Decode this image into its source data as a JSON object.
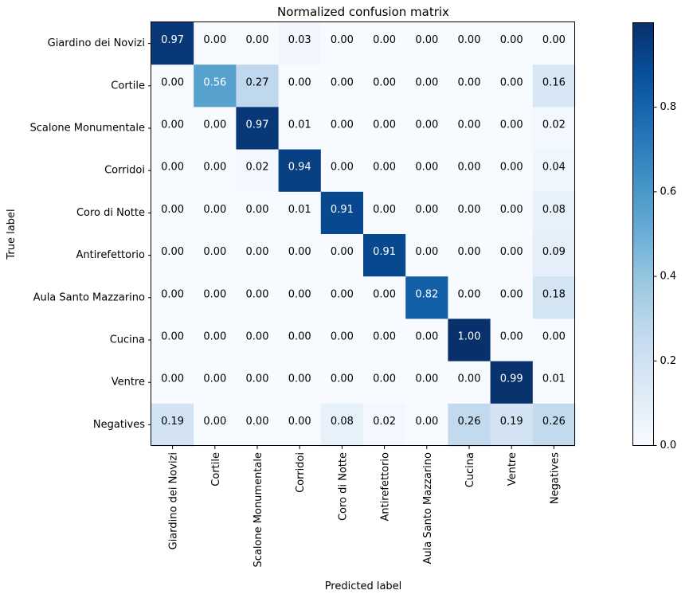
{
  "chart_data": {
    "type": "heatmap",
    "title": "Normalized confusion matrix",
    "xlabel": "Predicted label",
    "ylabel": "True label",
    "categories": [
      "Giardino dei Novizi",
      "Cortile",
      "Scalone Monumentale",
      "Corridoi",
      "Coro di Notte",
      "Antirefettorio",
      "Aula Santo Mazzarino",
      "Cucina",
      "Ventre",
      "Negatives"
    ],
    "cell_labels": [
      [
        "0.97",
        "0.00",
        "0.00",
        "0.03",
        "0.00",
        "0.00",
        "0.00",
        "0.00",
        "0.00",
        "0.00"
      ],
      [
        "0.00",
        "0.56",
        "0.27",
        "0.00",
        "0.00",
        "0.00",
        "0.00",
        "0.00",
        "0.00",
        "0.16"
      ],
      [
        "0.00",
        "0.00",
        "0.97",
        "0.01",
        "0.00",
        "0.00",
        "0.00",
        "0.00",
        "0.00",
        "0.02"
      ],
      [
        "0.00",
        "0.00",
        "0.02",
        "0.94",
        "0.00",
        "0.00",
        "0.00",
        "0.00",
        "0.00",
        "0.04"
      ],
      [
        "0.00",
        "0.00",
        "0.00",
        "0.01",
        "0.91",
        "0.00",
        "0.00",
        "0.00",
        "0.00",
        "0.08"
      ],
      [
        "0.00",
        "0.00",
        "0.00",
        "0.00",
        "0.00",
        "0.91",
        "0.00",
        "0.00",
        "0.00",
        "0.09"
      ],
      [
        "0.00",
        "0.00",
        "0.00",
        "0.00",
        "0.00",
        "0.00",
        "0.82",
        "0.00",
        "0.00",
        "0.18"
      ],
      [
        "0.00",
        "0.00",
        "0.00",
        "0.00",
        "0.00",
        "0.00",
        "0.00",
        "1.00",
        "0.00",
        "0.00"
      ],
      [
        "0.00",
        "0.00",
        "0.00",
        "0.00",
        "0.00",
        "0.00",
        "0.00",
        "0.00",
        "0.99",
        "0.01"
      ],
      [
        "0.19",
        "0.00",
        "0.00",
        "0.00",
        "0.08",
        "0.02",
        "0.00",
        "0.26",
        "0.19",
        "0.26"
      ]
    ],
    "values": [
      [
        0.97,
        0.0,
        0.0,
        0.03,
        0.0,
        0.0,
        0.0,
        0.0,
        0.0,
        0.0
      ],
      [
        0.0,
        0.56,
        0.27,
        0.0,
        0.0,
        0.0,
        0.0,
        0.0,
        0.0,
        0.16
      ],
      [
        0.0,
        0.0,
        0.97,
        0.01,
        0.0,
        0.0,
        0.0,
        0.0,
        0.0,
        0.02
      ],
      [
        0.0,
        0.0,
        0.02,
        0.94,
        0.0,
        0.0,
        0.0,
        0.0,
        0.0,
        0.04
      ],
      [
        0.0,
        0.0,
        0.0,
        0.01,
        0.91,
        0.0,
        0.0,
        0.0,
        0.0,
        0.08
      ],
      [
        0.0,
        0.0,
        0.0,
        0.0,
        0.0,
        0.91,
        0.0,
        0.0,
        0.0,
        0.09
      ],
      [
        0.0,
        0.0,
        0.0,
        0.0,
        0.0,
        0.0,
        0.82,
        0.0,
        0.0,
        0.18
      ],
      [
        0.0,
        0.0,
        0.0,
        0.0,
        0.0,
        0.0,
        0.0,
        1.0,
        0.0,
        0.0
      ],
      [
        0.0,
        0.0,
        0.0,
        0.0,
        0.0,
        0.0,
        0.0,
        0.0,
        0.99,
        0.01
      ],
      [
        0.19,
        0.0,
        0.0,
        0.0,
        0.08,
        0.02,
        0.0,
        0.26,
        0.19,
        0.26
      ]
    ],
    "colormap": "Blues",
    "colorbar": {
      "range": [
        0.0,
        1.0
      ],
      "ticks": [
        0.0,
        0.2,
        0.4,
        0.6,
        0.8
      ],
      "tick_labels": [
        "0.0",
        "0.2",
        "0.4",
        "0.6",
        "0.8"
      ]
    },
    "text_color_threshold": 0.5,
    "text_color_dark": "#000000",
    "text_color_light": "#ffffff"
  }
}
